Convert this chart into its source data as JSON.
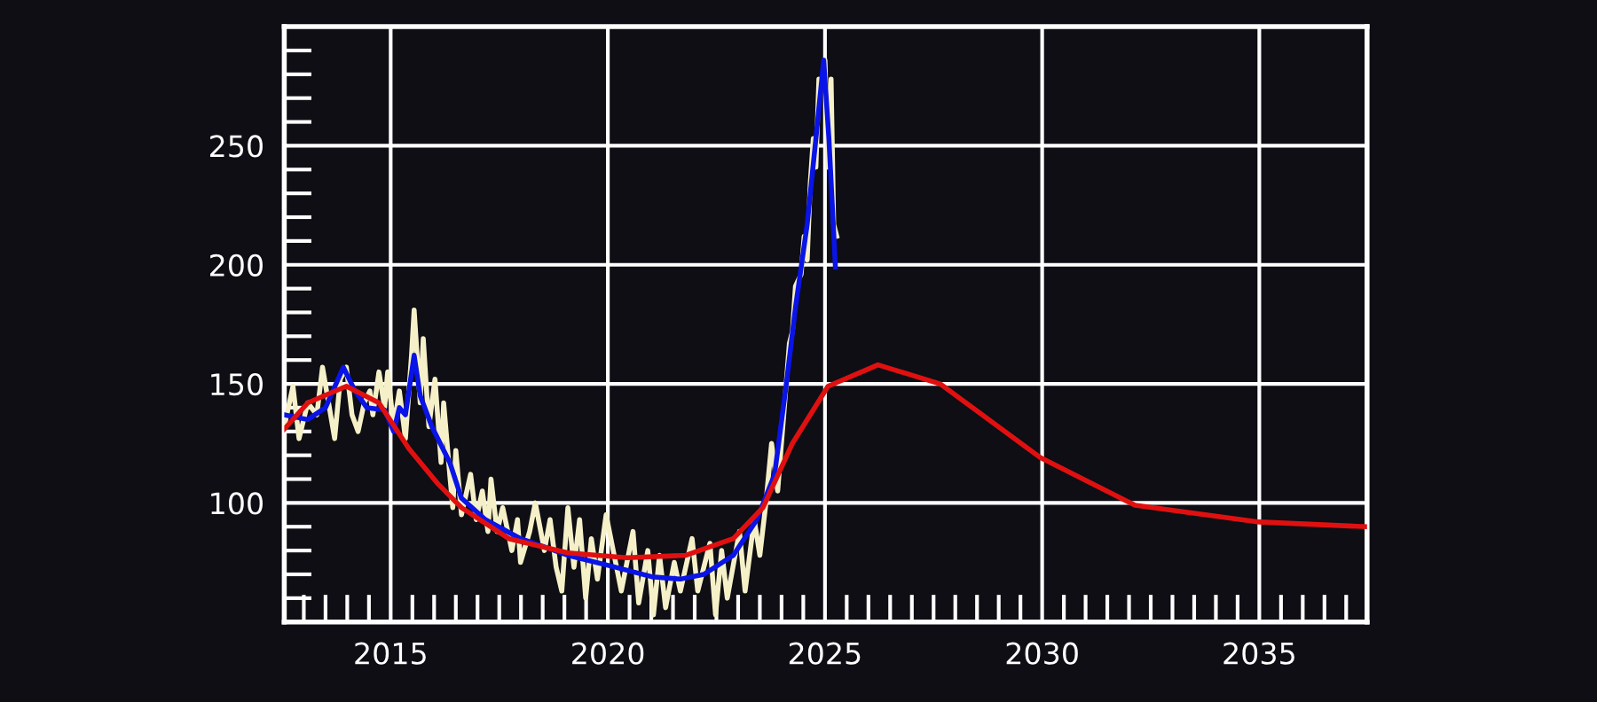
{
  "chart_data": {
    "type": "line",
    "xlim": [
      2012.55,
      2037.48
    ],
    "ylim": [
      50,
      300
    ],
    "xticks": [
      {
        "value": 2013,
        "label": null
      },
      {
        "value": 2013.5,
        "label": null
      },
      {
        "value": 2014,
        "label": null
      },
      {
        "value": 2014.5,
        "label": null
      },
      2015,
      {
        "value": 2015.5,
        "label": null
      },
      {
        "value": 2016,
        "label": null
      },
      {
        "value": 2016.5,
        "label": null
      },
      {
        "value": 2017,
        "label": null
      },
      {
        "value": 2017.5,
        "label": null
      },
      {
        "value": 2018,
        "label": null
      },
      {
        "value": 2018.5,
        "label": null
      },
      {
        "value": 2019,
        "label": null
      },
      {
        "value": 2019.5,
        "label": null
      },
      2020,
      {
        "value": 2020.5,
        "label": null
      },
      {
        "value": 2021,
        "label": null
      },
      {
        "value": 2021.5,
        "label": null
      },
      {
        "value": 2022,
        "label": null
      },
      {
        "value": 2022.5,
        "label": null
      },
      {
        "value": 2023,
        "label": null
      },
      {
        "value": 2023.5,
        "label": null
      },
      {
        "value": 2024,
        "label": null
      },
      {
        "value": 2024.5,
        "label": null
      },
      2025,
      {
        "value": 2025.5,
        "label": null
      },
      {
        "value": 2026,
        "label": null
      },
      {
        "value": 2026.5,
        "label": null
      },
      {
        "value": 2027,
        "label": null
      },
      {
        "value": 2027.5,
        "label": null
      },
      {
        "value": 2028,
        "label": null
      },
      {
        "value": 2028.5,
        "label": null
      },
      {
        "value": 2029,
        "label": null
      },
      {
        "value": 2029.5,
        "label": null
      },
      2030,
      {
        "value": 2030.5,
        "label": null
      },
      {
        "value": 2031,
        "label": null
      },
      {
        "value": 2031.5,
        "label": null
      },
      {
        "value": 2032,
        "label": null
      },
      {
        "value": 2032.5,
        "label": null
      },
      {
        "value": 2033,
        "label": null
      },
      {
        "value": 2033.5,
        "label": null
      },
      {
        "value": 2034,
        "label": null
      },
      {
        "value": 2034.5,
        "label": null
      },
      2035,
      {
        "value": 2035.5,
        "label": null
      },
      {
        "value": 2036,
        "label": null
      },
      {
        "value": 2036.5,
        "label": null
      },
      {
        "value": 2037,
        "label": null
      }
    ],
    "yticks": [
      {
        "value": 60,
        "label": null
      },
      {
        "value": 70,
        "label": null
      },
      {
        "value": 80,
        "label": null
      },
      {
        "value": 90,
        "label": null
      },
      100,
      {
        "value": 110,
        "label": null
      },
      {
        "value": 120,
        "label": null
      },
      {
        "value": 130,
        "label": null
      },
      {
        "value": 140,
        "label": null
      },
      150,
      {
        "value": 160,
        "label": null
      },
      {
        "value": 170,
        "label": null
      },
      {
        "value": 180,
        "label": null
      },
      {
        "value": 190,
        "label": null
      },
      200,
      {
        "value": 210,
        "label": null
      },
      {
        "value": 220,
        "label": null
      },
      {
        "value": 230,
        "label": null
      },
      {
        "value": 240,
        "label": null
      },
      250,
      {
        "value": 260,
        "label": null
      },
      {
        "value": 270,
        "label": null
      },
      {
        "value": 280,
        "label": null
      },
      {
        "value": 290,
        "label": null
      }
    ],
    "grid": true,
    "marker": "none",
    "line_style": "solid",
    "series": [
      {
        "color": "#f5f0c8",
        "x": [
          2012.55,
          2012.75,
          2012.89,
          2013.09,
          2013.3,
          2013.43,
          2013.57,
          2013.71,
          2013.84,
          2013.98,
          2014.11,
          2014.25,
          2014.39,
          2014.52,
          2014.59,
          2014.73,
          2014.86,
          2014.93,
          2015.07,
          2015.2,
          2015.34,
          2015.48,
          2015.54,
          2015.68,
          2015.75,
          2015.88,
          2016.02,
          2016.16,
          2016.22,
          2016.36,
          2016.43,
          2016.5,
          2016.63,
          2016.84,
          2016.97,
          2017.11,
          2017.24,
          2017.31,
          2017.45,
          2017.58,
          2017.79,
          2017.92,
          2017.99,
          2018.2,
          2018.33,
          2018.54,
          2018.67,
          2018.81,
          2018.94,
          2019.08,
          2019.22,
          2019.35,
          2019.49,
          2019.62,
          2019.76,
          2019.96,
          2020.31,
          2020.58,
          2020.71,
          2020.92,
          2021.05,
          2021.19,
          2021.33,
          2021.53,
          2021.67,
          2021.94,
          2022.07,
          2022.35,
          2022.48,
          2022.62,
          2022.75,
          2023.03,
          2023.16,
          2023.37,
          2023.5,
          2023.64,
          2023.77,
          2023.91,
          2024.05,
          2024.18,
          2024.25,
          2024.32,
          2024.45,
          2024.52,
          2024.59,
          2024.66,
          2024.73,
          2024.79,
          2024.86,
          2024.93,
          2025.0,
          2025.07,
          2025.14,
          2025.2,
          2025.27
        ],
        "values": [
          132,
          149,
          127,
          142,
          137,
          157,
          142,
          127,
          152,
          157,
          137,
          130,
          142,
          147,
          137,
          155,
          140,
          155,
          132,
          147,
          127,
          162,
          181,
          142,
          169,
          132,
          152,
          117,
          142,
          112,
          98,
          122,
          95,
          112,
          93,
          105,
          88,
          110,
          88,
          98,
          80,
          93,
          75,
          88,
          100,
          80,
          93,
          73,
          63,
          98,
          73,
          93,
          60,
          85,
          68,
          95,
          63,
          88,
          58,
          80,
          53,
          78,
          56,
          75,
          63,
          85,
          63,
          83,
          53,
          80,
          60,
          88,
          63,
          93,
          78,
          100,
          125,
          105,
          137,
          167,
          172,
          191,
          196,
          212,
          202,
          234,
          253,
          241,
          278,
          275,
          286,
          241,
          278,
          217,
          212
        ]
      },
      {
        "color": "#0a14e6",
        "x": [
          2012.55,
          2013.09,
          2013.5,
          2013.91,
          2014.18,
          2014.45,
          2014.86,
          2015.07,
          2015.2,
          2015.34,
          2015.54,
          2015.68,
          2015.95,
          2016.36,
          2016.63,
          2017.18,
          2017.99,
          2019.08,
          2020.17,
          2021.01,
          2021.67,
          2022.21,
          2022.89,
          2023.43,
          2023.84,
          2024.11,
          2024.32,
          2024.59,
          2024.79,
          2024.97,
          2025.09,
          2025.24
        ],
        "values": [
          137,
          135,
          140,
          157,
          147,
          140,
          139,
          130,
          140,
          137,
          162,
          145,
          132,
          117,
          102,
          93,
          85,
          78,
          73,
          69,
          68,
          70,
          78,
          93,
          112,
          150,
          182,
          217,
          253,
          286,
          253,
          199
        ]
      },
      {
        "color": "#e01010",
        "x": [
          2012.55,
          2013.09,
          2013.98,
          2014.73,
          2015.41,
          2016.09,
          2016.63,
          2017.72,
          2019.08,
          2020.44,
          2021.8,
          2022.89,
          2023.57,
          2024.25,
          2025.07,
          2026.22,
          2027.65,
          2029.96,
          2032.14,
          2035.0,
          2037.47
        ],
        "values": [
          131,
          142,
          149,
          142,
          123,
          108,
          98,
          85,
          79,
          77,
          78,
          85,
          98,
          125,
          149,
          158,
          150,
          119,
          99,
          92,
          90
        ]
      }
    ]
  }
}
